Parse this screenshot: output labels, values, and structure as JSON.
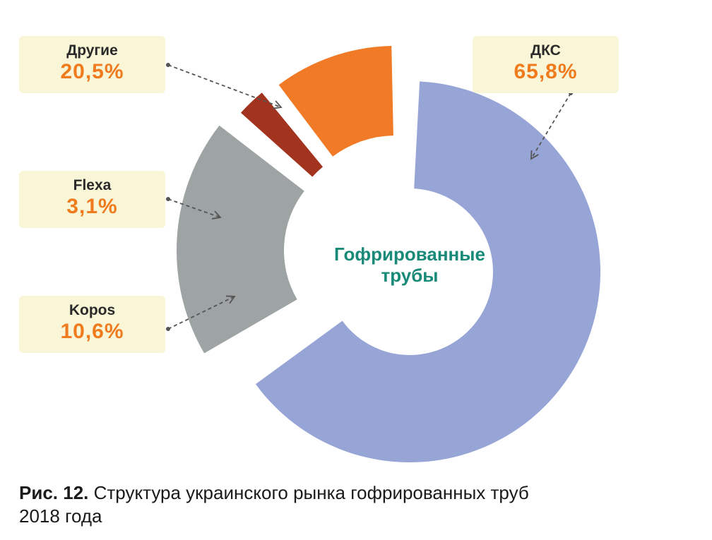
{
  "colors": {
    "label_bg": "#f8f6d6",
    "value_text": "#f07a1e",
    "center_text": "#1a8a78",
    "arrow": "#555555"
  },
  "chart_data": {
    "type": "pie",
    "variant": "donut (exploded segments)",
    "center_label_line1": "Гофрированные",
    "center_label_line2": "трубы",
    "slices": [
      {
        "name": "ДКС",
        "value": 65.8,
        "label": "65,8%",
        "color": "#97a4d6"
      },
      {
        "name": "Другие",
        "value": 20.5,
        "label": "20,5%",
        "color": "#9ea3a3"
      },
      {
        "name": "Flexa",
        "value": 3.1,
        "label": "3,1%",
        "color": "#a2331f"
      },
      {
        "name": "Kopos",
        "value": 10.6,
        "label": "10,6%",
        "color": "#f07a26"
      }
    ]
  },
  "caption": {
    "prefix": "Рис. 12.",
    "line1": " Структура украинского рынка гофрированных труб",
    "line2": "2018 года"
  }
}
